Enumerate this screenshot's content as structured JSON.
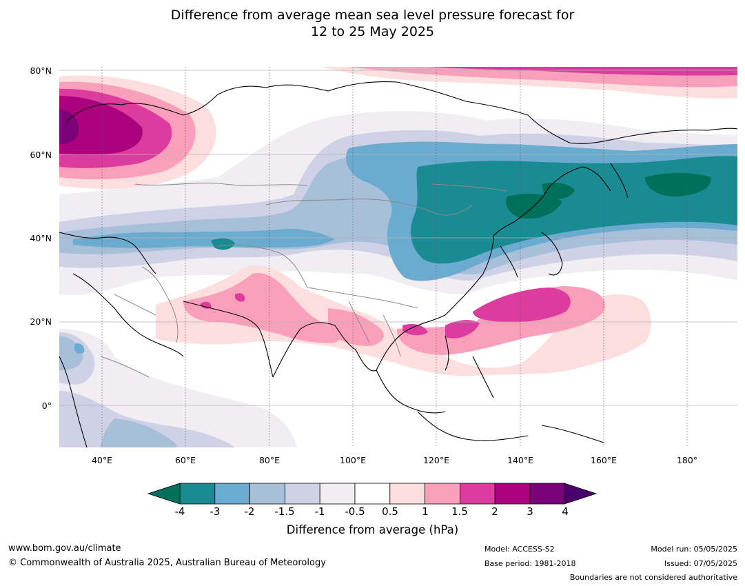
{
  "title_line1": "Difference from average mean sea level pressure forecast for",
  "title_line2": "12 to 25 May 2025",
  "lat_ticks": [
    "80°N",
    "60°N",
    "40°N",
    "20°N",
    "0°"
  ],
  "lon_ticks": [
    "40°E",
    "60°E",
    "80°E",
    "100°E",
    "120°E",
    "140°E",
    "160°E",
    "180°"
  ],
  "colorbar": {
    "ticks": [
      "-4",
      "-3",
      "-2",
      "-1.5",
      "-1",
      "-0.5",
      "0.5",
      "1",
      "1.5",
      "2",
      "3",
      "4"
    ],
    "colors": [
      "#1b8b93",
      "#6aabcf",
      "#a8bfda",
      "#cfd2e6",
      "#f0edf3",
      "#ffffff",
      "#fddede",
      "#f99fbc",
      "#dc3c9e",
      "#ad0280",
      "#7a0177"
    ],
    "under_color": "#00705a",
    "over_color": "#49006a",
    "label": "Difference from average (hPa)"
  },
  "footer": {
    "website": "www.bom.gov.au/climate",
    "copyright": "© Commonwealth of Australia 2025, Australian Bureau of Meteorology",
    "model": "Model: ACCESS-S2",
    "base_period": "Base period: 1981-2018",
    "model_run": "Model run: 05/05/2025",
    "issued": "Issued: 07/05/2025",
    "disclaimer": "Boundaries are not considered authoritative"
  }
}
